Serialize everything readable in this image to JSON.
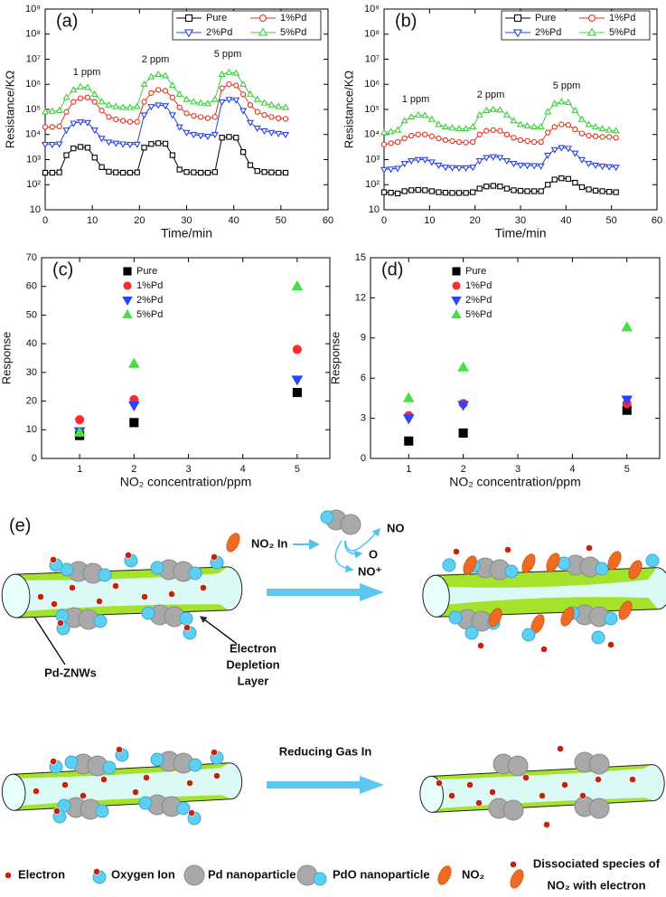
{
  "chart_data": [
    {
      "type": "line",
      "title": "(a)",
      "log_y": true,
      "filled": false,
      "legend": "upper right",
      "xlabel": "Time/min",
      "ylabel": "Resistance/KΩ",
      "xlim": [
        0,
        60
      ],
      "xticks": [
        0,
        10,
        20,
        30,
        40,
        50,
        60
      ],
      "ylim": [
        10,
        1000000000
      ],
      "yticks": [
        10,
        {
          "value": 100,
          "label": "10²"
        },
        {
          "value": 1000,
          "label": "10³"
        },
        {
          "value": 10000,
          "label": "10⁴"
        },
        {
          "value": 100000,
          "label": "10⁵"
        },
        {
          "value": 1000000,
          "label": "10⁶"
        },
        {
          "value": 10000000,
          "label": "10⁷"
        },
        {
          "value": 100000000,
          "label": "10⁸"
        },
        {
          "value": 1000000000,
          "label": "10⁹"
        }
      ],
      "annotations": [
        "1 ppm",
        "2 ppm",
        "5 ppm"
      ],
      "x": [
        0,
        1.5,
        3,
        4.5,
        6,
        7.5,
        9,
        10.5,
        12,
        13.5,
        15,
        16.5,
        18,
        19.5,
        21,
        22.5,
        24,
        25.5,
        27,
        28.5,
        30,
        31.5,
        33,
        34.5,
        36,
        37.5,
        39,
        40.5,
        42,
        43.5,
        45,
        46.5,
        48,
        49.5,
        51
      ],
      "series": [
        {
          "name": "Pure",
          "color": "#000000",
          "marker": "square",
          "values": [
            300,
            300,
            310,
            1500,
            2800,
            3200,
            3000,
            1200,
            500,
            330,
            310,
            300,
            300,
            310,
            3000,
            4200,
            4500,
            4300,
            1500,
            400,
            320,
            310,
            300,
            300,
            320,
            7500,
            8000,
            7500,
            2000,
            600,
            350,
            320,
            310,
            300,
            300
          ]
        },
        {
          "name": "1%Pd",
          "color": "#e8301c",
          "marker": "circle",
          "values": [
            20000,
            20000,
            21000,
            80000,
            200000,
            280000,
            300000,
            200000,
            90000,
            50000,
            40000,
            35000,
            32000,
            32000,
            200000,
            450000,
            600000,
            550000,
            300000,
            120000,
            70000,
            55000,
            50000,
            45000,
            50000,
            700000,
            1000000,
            900000,
            400000,
            150000,
            80000,
            60000,
            50000,
            45000,
            42000
          ]
        },
        {
          "name": "2%Pd",
          "color": "#2a44e0",
          "marker": "triangle-down",
          "values": [
            4000,
            4000,
            4200,
            15000,
            28000,
            32000,
            30000,
            15000,
            7000,
            5000,
            4500,
            4200,
            4000,
            4100,
            60000,
            130000,
            150000,
            140000,
            60000,
            20000,
            12000,
            10000,
            9000,
            8500,
            10000,
            200000,
            250000,
            240000,
            90000,
            30000,
            18000,
            14000,
            12000,
            11000,
            10000
          ]
        },
        {
          "name": "5%Pd",
          "color": "#3fcf3f",
          "marker": "triangle-up",
          "values": [
            80000,
            85000,
            90000,
            300000,
            600000,
            800000,
            750000,
            400000,
            200000,
            150000,
            130000,
            120000,
            120000,
            130000,
            1000000,
            2000000,
            2500000,
            2200000,
            900000,
            400000,
            250000,
            200000,
            180000,
            170000,
            250000,
            2500000,
            3000000,
            2800000,
            1000000,
            400000,
            250000,
            180000,
            150000,
            130000,
            120000
          ]
        }
      ]
    },
    {
      "type": "line",
      "title": "(b)",
      "log_y": true,
      "filled": false,
      "legend": "upper right",
      "xlabel": "Time/min",
      "ylabel": "Resistance/KΩ",
      "xlim": [
        0,
        60
      ],
      "xticks": [
        0,
        10,
        20,
        30,
        40,
        50,
        60
      ],
      "ylim": [
        10,
        1000000000
      ],
      "yticks": [
        10,
        {
          "value": 100,
          "label": "10²"
        },
        {
          "value": 1000,
          "label": "10³"
        },
        {
          "value": 10000,
          "label": "10⁴"
        },
        {
          "value": 100000,
          "label": "10⁵"
        },
        {
          "value": 1000000,
          "label": "10⁶"
        },
        {
          "value": 10000000,
          "label": "10⁷"
        },
        {
          "value": 100000000,
          "label": "10⁸"
        },
        {
          "value": 1000000000,
          "label": "10⁹"
        }
      ],
      "annotations": [
        "1 ppm",
        "2 ppm",
        "5 ppm"
      ],
      "x": [
        0,
        1.5,
        3,
        4.5,
        6,
        7.5,
        9,
        10.5,
        12,
        13.5,
        15,
        16.5,
        18,
        19.5,
        21,
        22.5,
        24,
        25.5,
        27,
        28.5,
        30,
        31.5,
        33,
        34.5,
        36,
        37.5,
        39,
        40.5,
        42,
        43.5,
        45,
        46.5,
        48,
        49.5,
        51
      ],
      "series": [
        {
          "name": "Pure",
          "color": "#000000",
          "marker": "square",
          "values": [
            50,
            48,
            45,
            55,
            60,
            62,
            60,
            55,
            50,
            48,
            47,
            47,
            47,
            50,
            70,
            85,
            90,
            85,
            70,
            60,
            57,
            55,
            55,
            55,
            100,
            160,
            180,
            170,
            120,
            80,
            65,
            58,
            55,
            52,
            50
          ]
        },
        {
          "name": "1%Pd",
          "color": "#e8301c",
          "marker": "circle",
          "values": [
            4000,
            4500,
            5000,
            7000,
            9000,
            10000,
            10000,
            8500,
            7000,
            6000,
            5500,
            5000,
            4800,
            5000,
            10000,
            14000,
            15000,
            14000,
            10000,
            7500,
            6000,
            5500,
            5000,
            5000,
            12000,
            20000,
            25000,
            24000,
            16000,
            11000,
            9000,
            8500,
            8000,
            8000,
            7500
          ]
        },
        {
          "name": "2%Pd",
          "color": "#2a44e0",
          "marker": "triangle-down",
          "values": [
            400,
            420,
            450,
            700,
            900,
            1000,
            1000,
            800,
            600,
            500,
            480,
            470,
            470,
            500,
            900,
            1200,
            1300,
            1200,
            900,
            700,
            600,
            580,
            570,
            560,
            1500,
            2500,
            3000,
            2800,
            1800,
            1000,
            700,
            600,
            550,
            520,
            500
          ]
        },
        {
          "name": "5%Pd",
          "color": "#3fcf3f",
          "marker": "triangle-up",
          "values": [
            12000,
            13000,
            15000,
            35000,
            50000,
            60000,
            58000,
            40000,
            25000,
            20000,
            18000,
            17000,
            17000,
            20000,
            60000,
            90000,
            100000,
            95000,
            60000,
            35000,
            25000,
            22000,
            20000,
            20000,
            80000,
            170000,
            200000,
            190000,
            90000,
            40000,
            25000,
            20000,
            17000,
            15000,
            14000
          ]
        }
      ]
    },
    {
      "type": "scatter",
      "title": "(c)",
      "log_y": false,
      "filled": true,
      "legend": "upper left",
      "xlabel": "NO₂ concentration/ppm",
      "ylabel": "Response",
      "xlim": [
        0.3,
        5.6
      ],
      "xticks": [
        1,
        2,
        3,
        4,
        5
      ],
      "ylim": [
        0,
        70
      ],
      "yticks": [
        0,
        10,
        20,
        30,
        40,
        50,
        60,
        70
      ],
      "x": [
        1,
        2,
        5
      ],
      "series": [
        {
          "name": "Pure",
          "color": "#000000",
          "marker": "square",
          "values": [
            8,
            12.5,
            23
          ]
        },
        {
          "name": "1%Pd",
          "color": "#ff2a2a",
          "marker": "circle",
          "values": [
            13.5,
            20.5,
            38
          ]
        },
        {
          "name": "2%Pd",
          "color": "#2a44ff",
          "marker": "triangle-down",
          "values": [
            9.5,
            18.5,
            27.5
          ]
        },
        {
          "name": "5%Pd",
          "color": "#44e044",
          "marker": "triangle-up",
          "values": [
            9,
            33,
            60
          ]
        }
      ]
    },
    {
      "type": "scatter",
      "title": "(d)",
      "log_y": false,
      "filled": true,
      "legend": "upper left",
      "xlabel": "NO₂ concentration/ppm",
      "ylabel": "Response",
      "xlim": [
        0.3,
        5.6
      ],
      "xticks": [
        1,
        2,
        3,
        4,
        5
      ],
      "ylim": [
        0,
        15
      ],
      "yticks": [
        0,
        3,
        6,
        9,
        12,
        15
      ],
      "x": [
        1,
        2,
        5
      ],
      "series": [
        {
          "name": "Pure",
          "color": "#000000",
          "marker": "square",
          "values": [
            1.3,
            1.9,
            3.6
          ]
        },
        {
          "name": "1%Pd",
          "color": "#ff2a2a",
          "marker": "circle",
          "values": [
            3.2,
            4.1,
            4.1
          ]
        },
        {
          "name": "2%Pd",
          "color": "#2a44ff",
          "marker": "triangle-down",
          "values": [
            3.0,
            4.0,
            4.4
          ]
        },
        {
          "name": "5%Pd",
          "color": "#44e044",
          "marker": "triangle-up",
          "values": [
            4.5,
            6.8,
            9.8
          ]
        }
      ]
    }
  ],
  "diagram": {
    "label": "(e)",
    "no2_in": "NO₂ In",
    "products": [
      "NO",
      "O",
      "NO⁺"
    ],
    "wire_label": "Pd-ZNWs",
    "depletion_label": [
      "Electron",
      "Depletion",
      "Layer"
    ],
    "reducing_gas": "Reducing Gas  In",
    "legend": [
      "Electron",
      "Oxygen Ion",
      "Pd nanoparticle",
      "PdO nanoparticle",
      "NO₂"
    ],
    "legend_last": [
      "Dissociated species of",
      "NO₂ with electron"
    ]
  }
}
